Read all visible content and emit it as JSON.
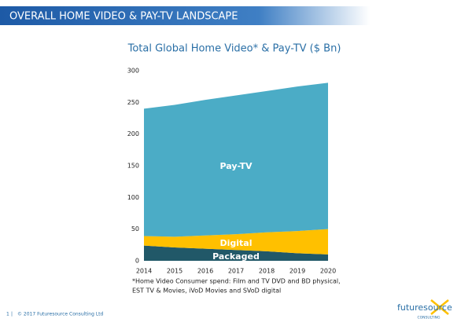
{
  "header": {
    "title": "OVERALL HOME VIDEO & PAY-TV LANDSCAPE"
  },
  "chart_data": {
    "type": "stacked_area",
    "title": "Total Global Home Video* & Pay-TV ($ Bn)",
    "categories": [
      "2014",
      "2015",
      "2016",
      "2017",
      "2018",
      "2019",
      "2020"
    ],
    "series": [
      {
        "name": "Packaged",
        "color": "#215868",
        "values": [
          24,
          21,
          19,
          17,
          15,
          12,
          10
        ]
      },
      {
        "name": "Digital",
        "color": "#ffc000",
        "values": [
          15,
          17,
          21,
          25,
          30,
          35,
          40
        ]
      },
      {
        "name": "Pay-TV",
        "color": "#4bacc6",
        "values": [
          201,
          208,
          214,
          219,
          223,
          228,
          231
        ]
      }
    ],
    "ylim": [
      0,
      300
    ],
    "yticks": [
      0,
      50,
      100,
      150,
      200,
      250,
      300
    ],
    "grid": false
  },
  "footnote": [
    "*Home Video Consumer spend: Film and TV DVD and BD physical,",
    "EST TV & Movies, iVoD Movies and SVoD digital"
  ],
  "footer": {
    "page": "1",
    "copyright": "© 2017 Futuresource Consulting Ltd"
  },
  "logo": {
    "name": "futuresource",
    "tagline": "CONSULTING"
  }
}
